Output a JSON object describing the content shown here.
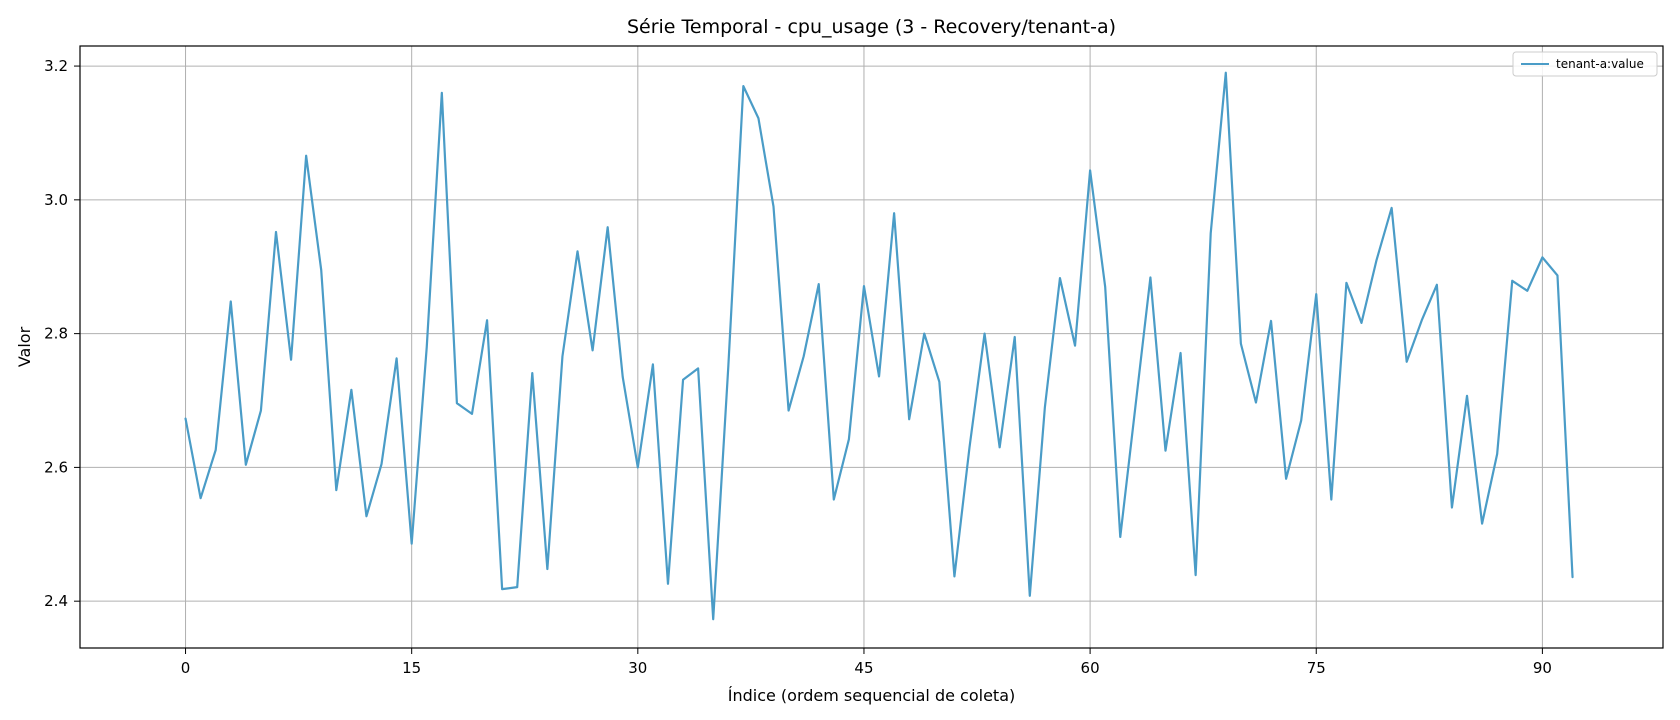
{
  "chart_data": {
    "type": "line",
    "title": "Série Temporal - cpu_usage (3 - Recovery/tenant-a)",
    "xlabel": "Índice (ordem sequencial de coleta)",
    "ylabel": "Valor",
    "xlim": [
      -7,
      98
    ],
    "ylim": [
      2.33,
      3.23
    ],
    "xticks": [
      0,
      15,
      30,
      45,
      60,
      75,
      90
    ],
    "yticks": [
      2.4,
      2.6,
      2.8,
      3.0,
      3.2
    ],
    "ytick_labels": [
      "2.4",
      "2.6",
      "2.8",
      "3.0",
      "3.2"
    ],
    "grid": true,
    "legend_position": "top-right",
    "series": [
      {
        "name": "tenant-a:value",
        "color": "#4a9cc7",
        "x": [
          0,
          1,
          2,
          3,
          4,
          5,
          6,
          7,
          8,
          9,
          10,
          11,
          12,
          13,
          14,
          15,
          16,
          17,
          18,
          19,
          20,
          21,
          22,
          23,
          24,
          25,
          26,
          27,
          28,
          29,
          30,
          31,
          32,
          33,
          34,
          35,
          36,
          37,
          38,
          39,
          40,
          41,
          42,
          43,
          44,
          45,
          46,
          47,
          48,
          49,
          50,
          51,
          52,
          53,
          54,
          55,
          56,
          57,
          58,
          59,
          60,
          61,
          62,
          63,
          64,
          65,
          66,
          67,
          68,
          69,
          70,
          71,
          72,
          73,
          74,
          75,
          76,
          77,
          78,
          79,
          80,
          81,
          82,
          83,
          84,
          85,
          86,
          87,
          88,
          89,
          90,
          91,
          92
        ],
        "values": [
          2.673,
          2.554,
          2.626,
          2.848,
          2.604,
          2.685,
          2.952,
          2.761,
          3.066,
          2.895,
          2.566,
          2.716,
          2.527,
          2.605,
          2.763,
          2.486,
          2.78,
          3.16,
          2.696,
          2.68,
          2.82,
          2.418,
          2.421,
          2.741,
          2.448,
          2.766,
          2.923,
          2.775,
          2.959,
          2.735,
          2.6,
          2.754,
          2.426,
          2.731,
          2.748,
          2.373,
          2.75,
          3.17,
          3.122,
          2.99,
          2.685,
          2.766,
          2.874,
          2.552,
          2.642,
          2.871,
          2.736,
          2.98,
          2.672,
          2.8,
          2.728,
          2.437,
          2.63,
          2.8,
          2.63,
          2.795,
          2.408,
          2.69,
          2.883,
          2.782,
          3.044,
          2.87,
          2.496,
          2.69,
          2.884,
          2.625,
          2.771,
          2.439,
          2.95,
          3.19,
          2.785,
          2.697,
          2.819,
          2.583,
          2.67,
          2.859,
          2.552,
          2.876,
          2.816,
          2.91,
          2.988,
          2.758,
          2.82,
          2.873,
          2.54,
          2.707,
          2.516,
          2.62,
          2.879,
          2.864,
          2.914,
          2.887,
          2.436
        ]
      }
    ]
  }
}
